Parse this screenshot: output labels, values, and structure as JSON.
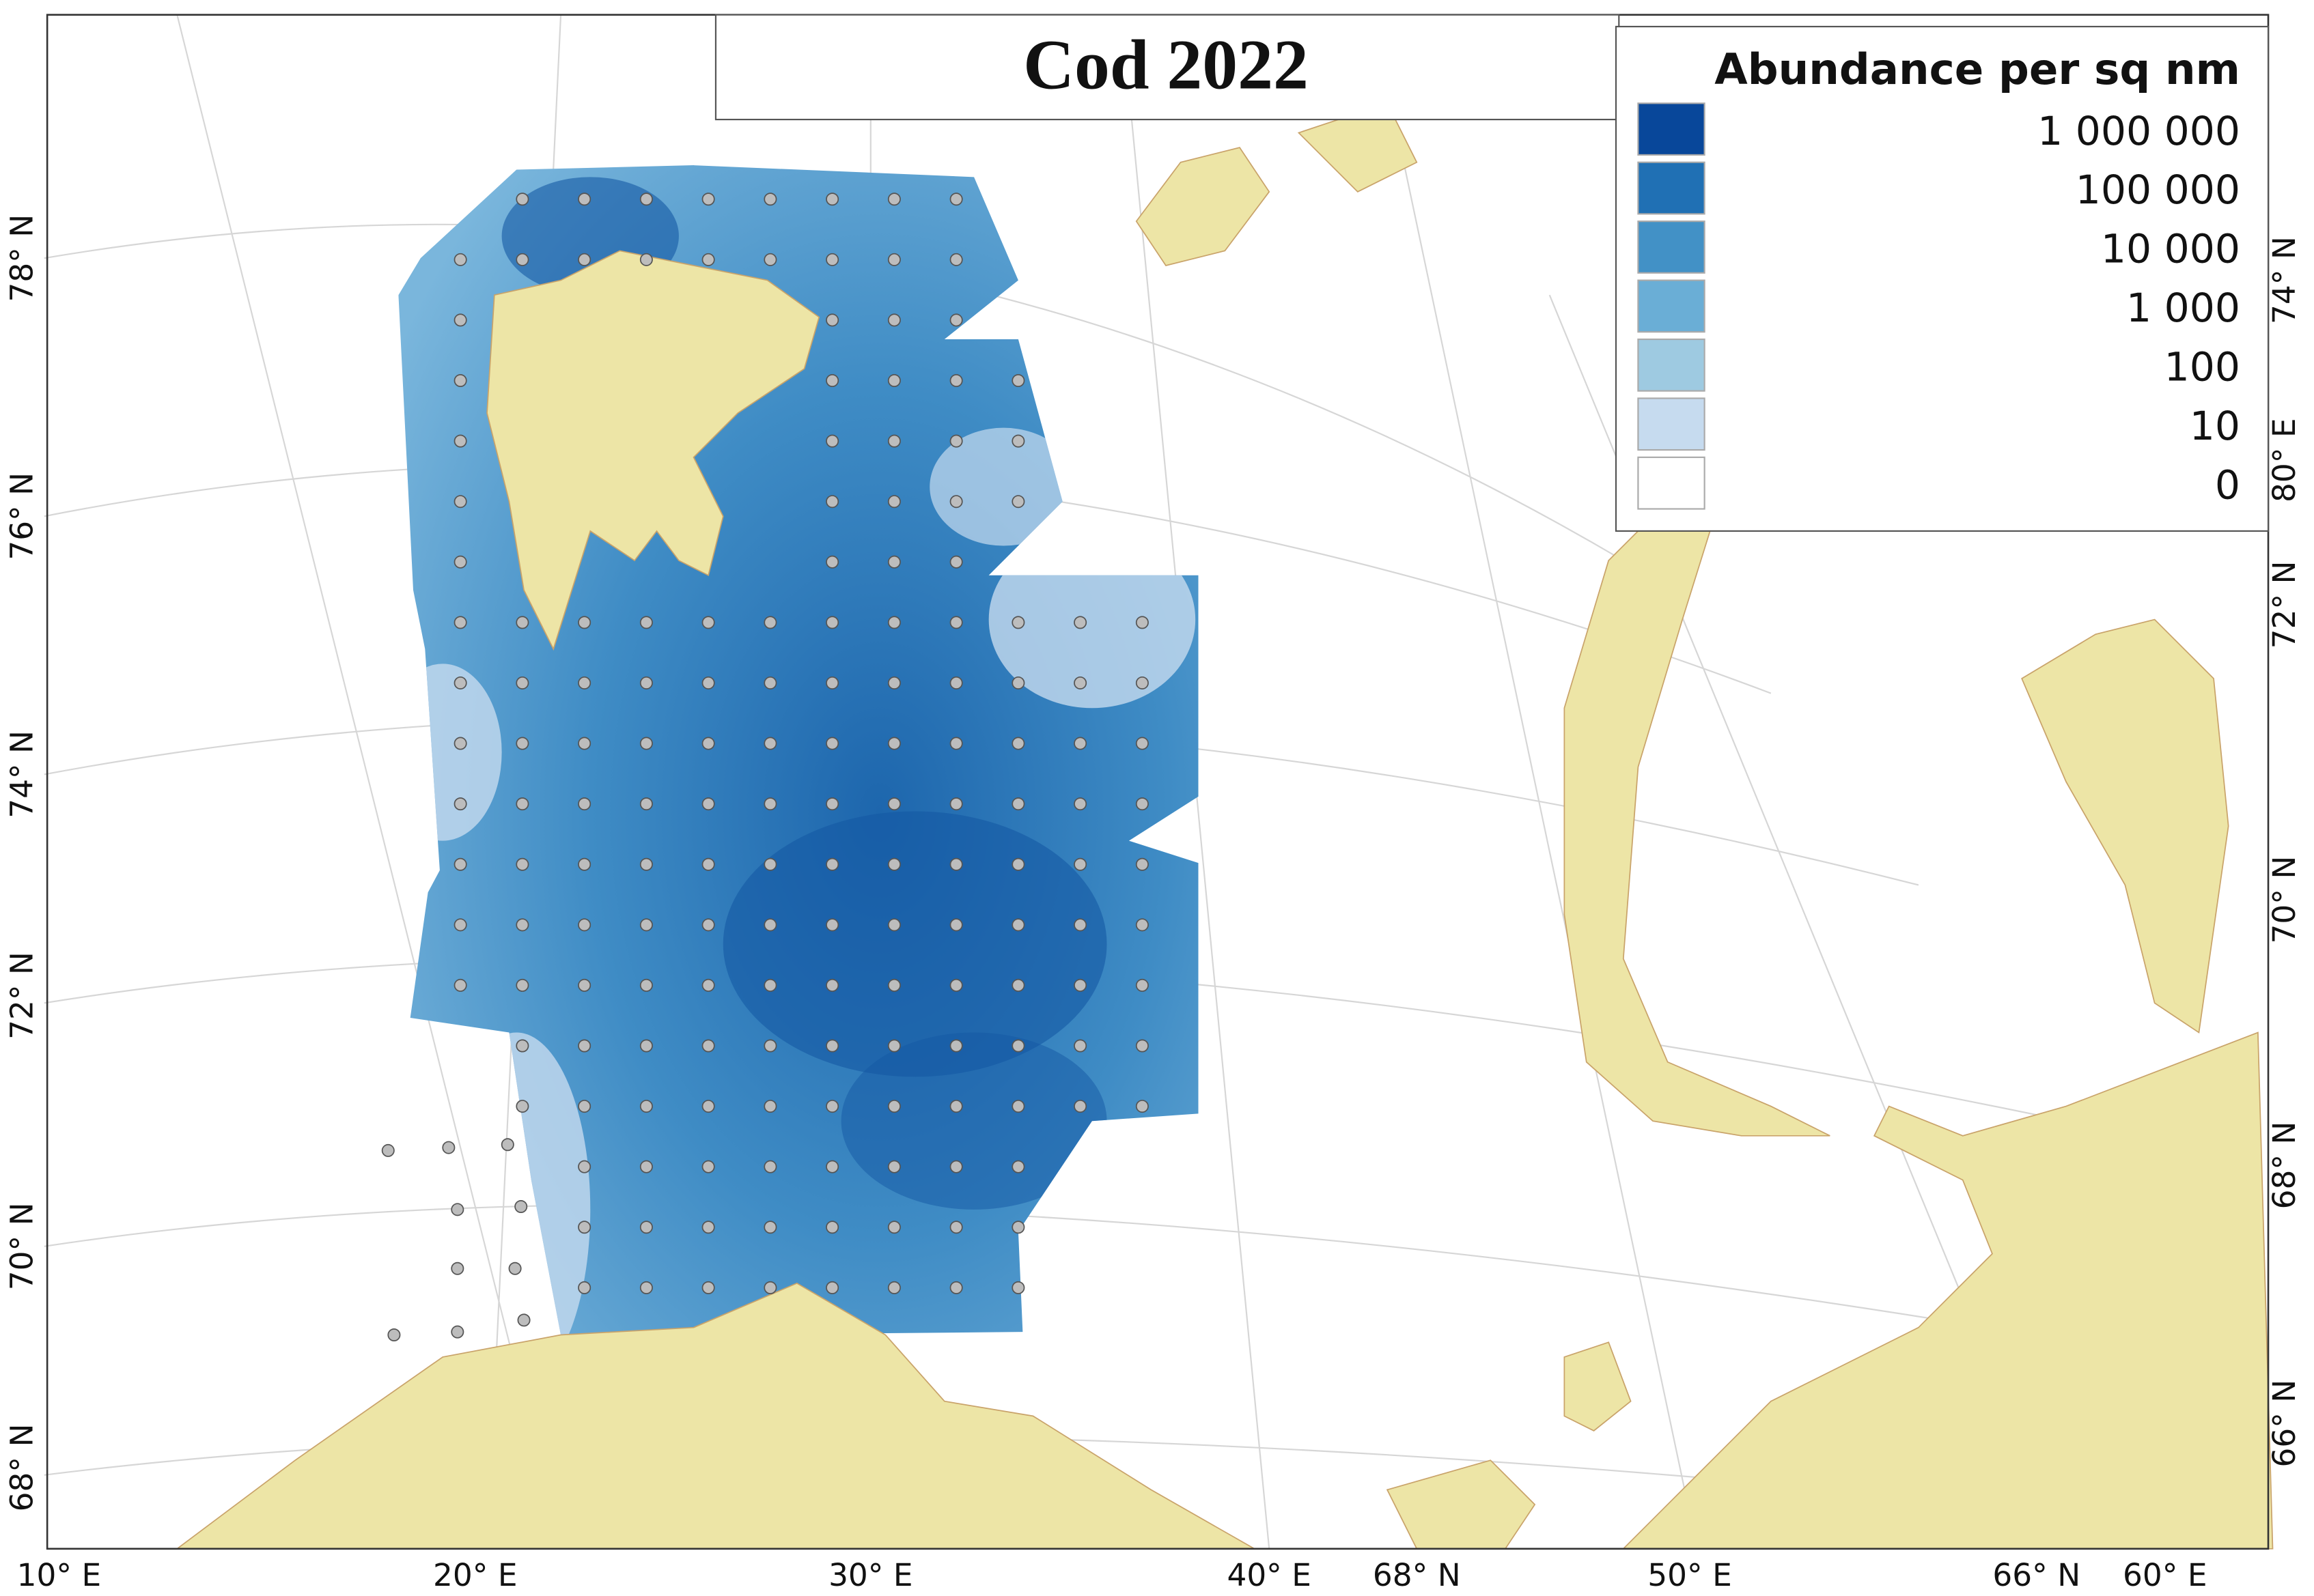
{
  "title": "Cod 2022",
  "legend": {
    "title": "Abundance per sq nm",
    "items": [
      {
        "label": "1 000 000",
        "color": "#08479a"
      },
      {
        "label": "100 000",
        "color": "#2070b4"
      },
      {
        "label": "10 000",
        "color": "#4291c6"
      },
      {
        "label": "1 000",
        "color": "#6aaed6"
      },
      {
        "label": "100",
        "color": "#9ecae1"
      },
      {
        "label": "10",
        "color": "#c6dbef"
      },
      {
        "label": "0",
        "color": "#ffffff"
      }
    ]
  },
  "axis_labels": {
    "left": [
      "78° N",
      "76° N",
      "74° N",
      "72° N",
      "70° N",
      "68° N"
    ],
    "bottom": [
      "10° E",
      "20° E",
      "30° E",
      "40° E",
      "68° N",
      "50° E",
      "66° N",
      "60° E"
    ],
    "right": [
      "74° N",
      "80° E",
      "72° N",
      "70° N",
      "68° N",
      "66° N"
    ]
  }
}
